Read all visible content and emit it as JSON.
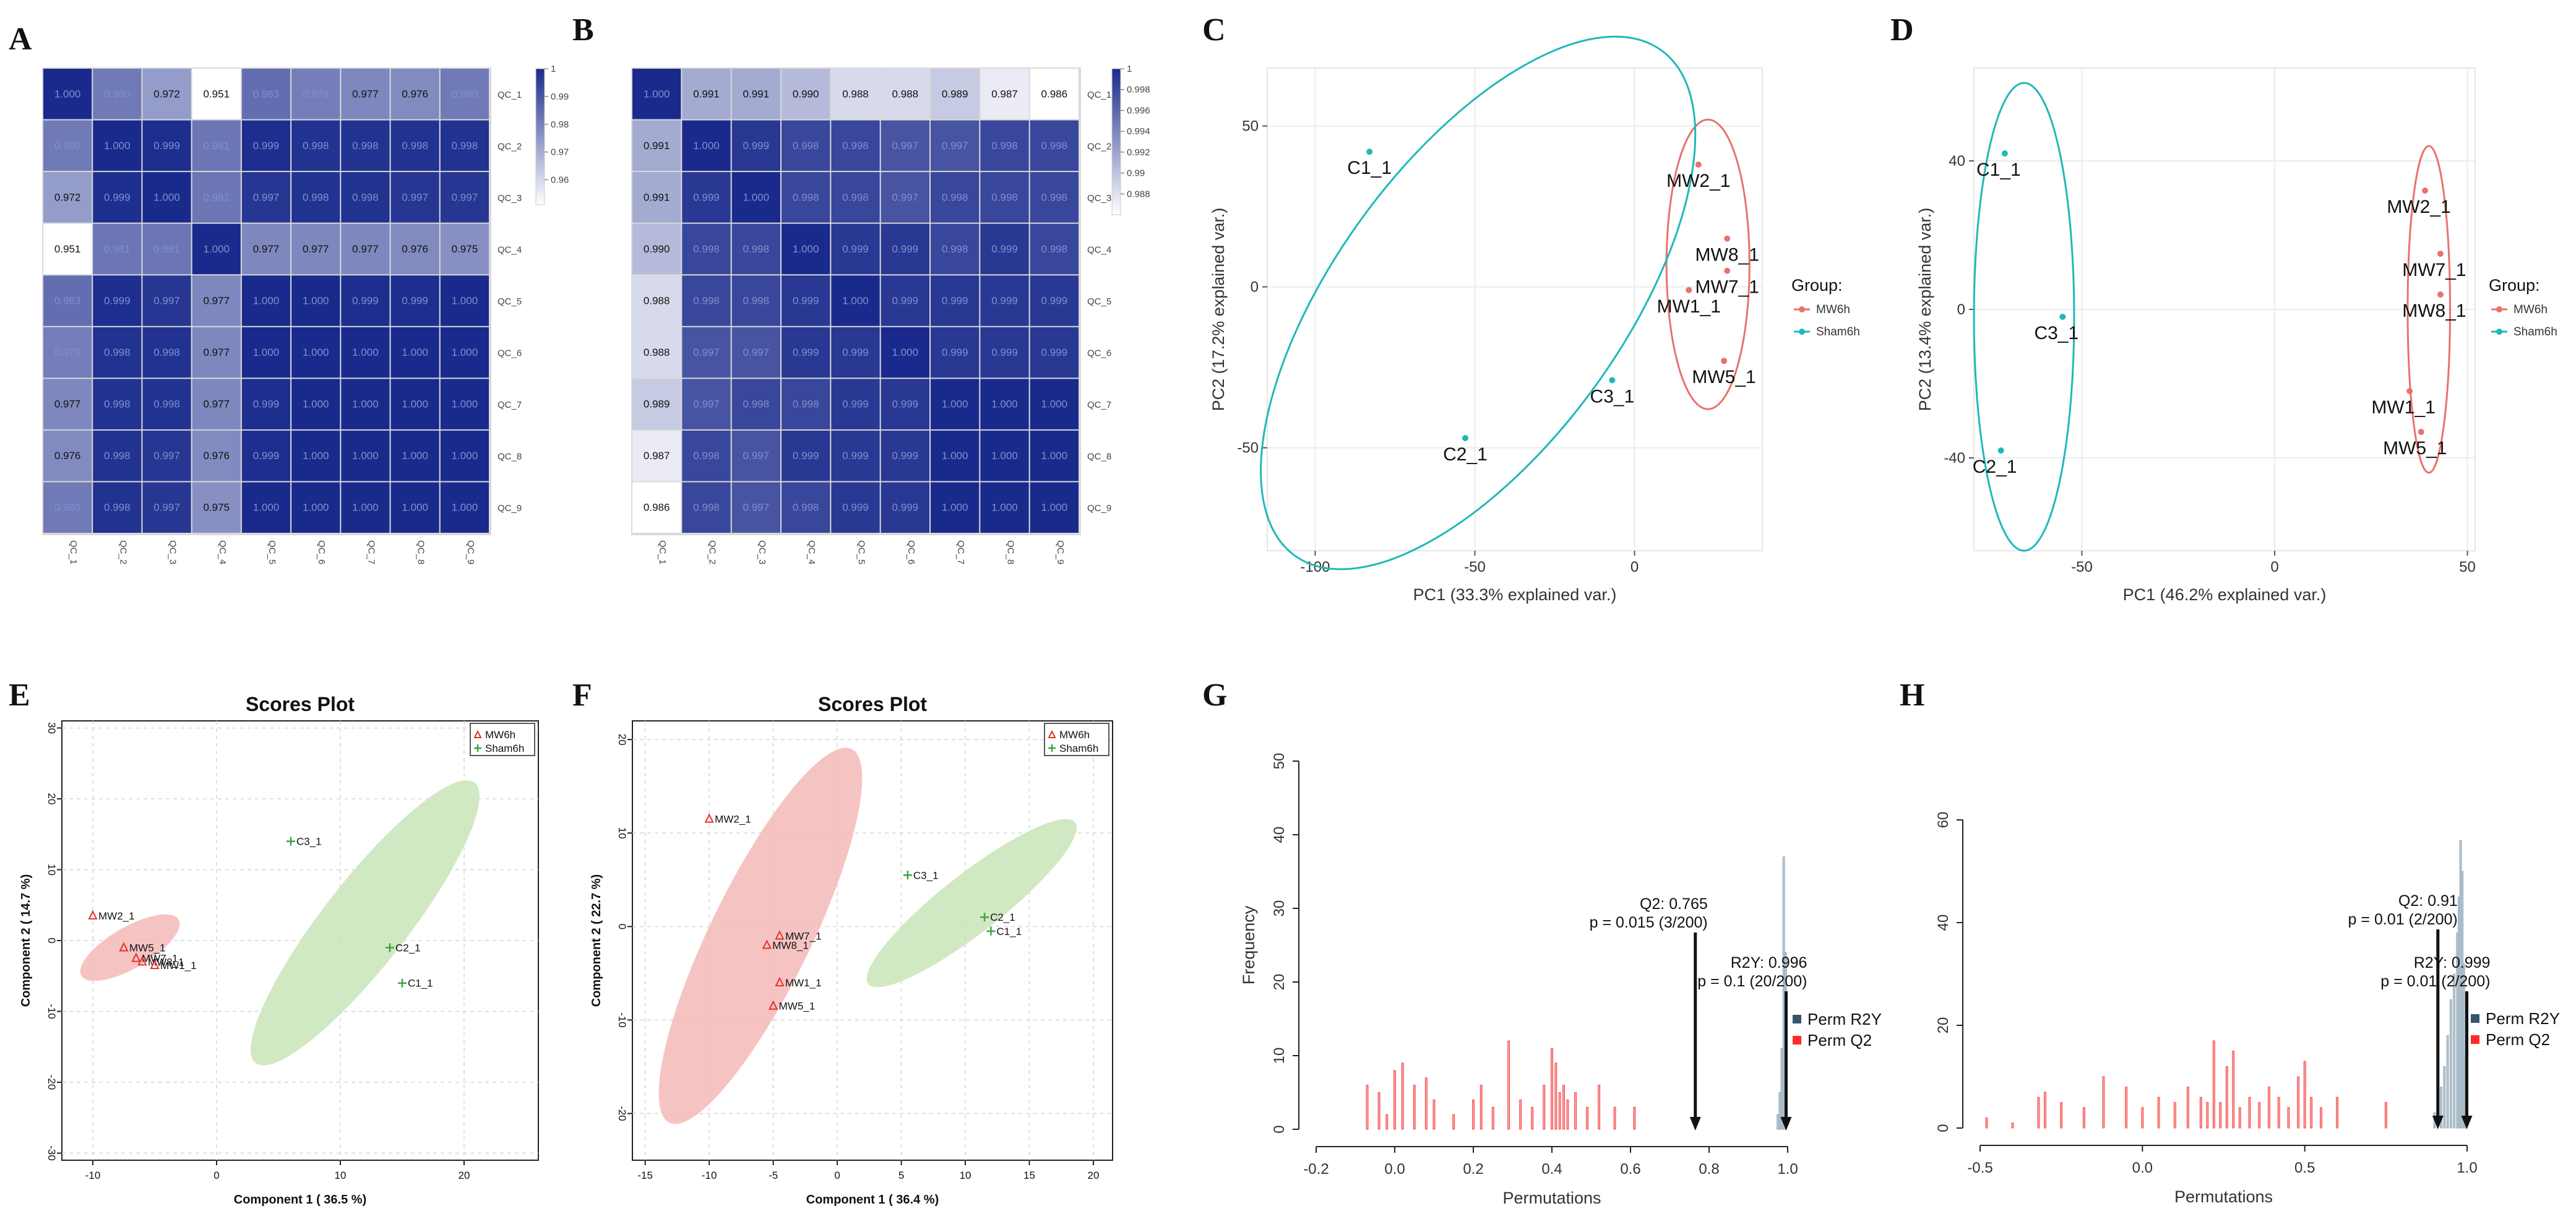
{
  "figure": {
    "panel_letters": [
      "A",
      "B",
      "C",
      "D",
      "E",
      "F",
      "G",
      "H"
    ]
  },
  "chart_data": [
    {
      "panel": "A",
      "type": "heatmap",
      "row_labels": [
        "QC_1",
        "QC_2",
        "QC_3",
        "QC_4",
        "QC_5",
        "QC_6",
        "QC_7",
        "QC_8",
        "QC_9"
      ],
      "col_labels": [
        "QC_1",
        "QC_2",
        "QC_3",
        "QC_4",
        "QC_5",
        "QC_6",
        "QC_7",
        "QC_8",
        "QC_9"
      ],
      "matrix": [
        [
          "1.000",
          "0.980",
          "0.972",
          "0.951",
          "0.983",
          "0.979",
          "0.977",
          "0.976",
          "0.980"
        ],
        [
          "0.980",
          "1.000",
          "0.999",
          "0.981",
          "0.999",
          "0.998",
          "0.998",
          "0.998",
          "0.998"
        ],
        [
          "0.972",
          "0.999",
          "1.000",
          "0.981",
          "0.997",
          "0.998",
          "0.998",
          "0.997",
          "0.997"
        ],
        [
          "0.951",
          "0.981",
          "0.981",
          "1.000",
          "0.977",
          "0.977",
          "0.977",
          "0.976",
          "0.975"
        ],
        [
          "0.983",
          "0.999",
          "0.997",
          "0.977",
          "1.000",
          "1.000",
          "0.999",
          "0.999",
          "1.000"
        ],
        [
          "0.979",
          "0.998",
          "0.998",
          "0.977",
          "1.000",
          "1.000",
          "1.000",
          "1.000",
          "1.000"
        ],
        [
          "0.977",
          "0.998",
          "0.998",
          "0.977",
          "0.999",
          "1.000",
          "1.000",
          "1.000",
          "1.000"
        ],
        [
          "0.976",
          "0.998",
          "0.997",
          "0.976",
          "0.999",
          "1.000",
          "1.000",
          "1.000",
          "1.000"
        ],
        [
          "0.980",
          "0.998",
          "0.997",
          "0.975",
          "1.000",
          "1.000",
          "1.000",
          "1.000",
          "1.000"
        ]
      ],
      "scale_min": 0.951,
      "scale_max": 1.0,
      "colorbar_ticks": [
        "1",
        "0.99",
        "0.98",
        "0.97",
        "0.96"
      ],
      "colorbar_tick_values": [
        1.0,
        0.99,
        0.98,
        0.97,
        0.96
      ],
      "colors": {
        "low": "#ffffff",
        "high": "#1a2a8c"
      }
    },
    {
      "panel": "B",
      "type": "heatmap",
      "row_labels": [
        "QC_1",
        "QC_2",
        "QC_3",
        "QC_4",
        "QC_5",
        "QC_6",
        "QC_7",
        "QC_8",
        "QC_9"
      ],
      "col_labels": [
        "QC_1",
        "QC_2",
        "QC_3",
        "QC_4",
        "QC_5",
        "QC_6",
        "QC_7",
        "QC_8",
        "QC_9"
      ],
      "matrix": [
        [
          "1.000",
          "0.991",
          "0.991",
          "0.990",
          "0.988",
          "0.988",
          "0.989",
          "0.987",
          "0.986"
        ],
        [
          "0.991",
          "1.000",
          "0.999",
          "0.998",
          "0.998",
          "0.997",
          "0.997",
          "0.998",
          "0.998"
        ],
        [
          "0.991",
          "0.999",
          "1.000",
          "0.998",
          "0.998",
          "0.997",
          "0.998",
          "0.998",
          "0.998"
        ],
        [
          "0.990",
          "0.998",
          "0.998",
          "1.000",
          "0.999",
          "0.999",
          "0.998",
          "0.999",
          "0.998"
        ],
        [
          "0.988",
          "0.998",
          "0.998",
          "0.999",
          "1.000",
          "0.999",
          "0.999",
          "0.999",
          "0.999"
        ],
        [
          "0.988",
          "0.997",
          "0.997",
          "0.999",
          "0.999",
          "1.000",
          "0.999",
          "0.999",
          "0.999"
        ],
        [
          "0.989",
          "0.997",
          "0.998",
          "0.998",
          "0.999",
          "0.999",
          "1.000",
          "1.000",
          "1.000"
        ],
        [
          "0.987",
          "0.998",
          "0.997",
          "0.999",
          "0.999",
          "0.999",
          "1.000",
          "1.000",
          "1.000"
        ],
        [
          "0.986",
          "0.998",
          "0.997",
          "0.998",
          "0.999",
          "0.999",
          "1.000",
          "1.000",
          "1.000"
        ]
      ],
      "scale_min": 0.986,
      "scale_max": 1.0,
      "colorbar_ticks": [
        "1",
        "0.998",
        "0.996",
        "0.994",
        "0.992",
        "0.99",
        "0.988"
      ],
      "colorbar_tick_values": [
        1.0,
        0.998,
        0.996,
        0.994,
        0.992,
        0.99,
        0.988
      ],
      "colors": {
        "low": "#ffffff",
        "high": "#1a2a8c"
      }
    },
    {
      "panel": "C",
      "type": "scatter",
      "xlabel": "PC1 (33.3% explained var.)",
      "ylabel": "PC2 (17.2% explained var.)",
      "xlim": [
        -115,
        40
      ],
      "ylim": [
        -82,
        68
      ],
      "xticks": [
        -100,
        -50,
        0
      ],
      "yticks": [
        -50,
        0,
        50
      ],
      "legend_title": "Group:",
      "series": [
        {
          "name": "MW6h",
          "color": "#e8726c",
          "points": [
            {
              "label": "MW2_1",
              "x": 20,
              "y": 38
            },
            {
              "label": "MW8_1",
              "x": 29,
              "y": 15
            },
            {
              "label": "MW7_1",
              "x": 29,
              "y": 5
            },
            {
              "label": "MW1_1",
              "x": 17,
              "y": -1
            },
            {
              "label": "MW5_1",
              "x": 28,
              "y": -23
            }
          ],
          "ellipse": {
            "cx": 23,
            "cy": 7,
            "rx": 13,
            "ry": 45,
            "angle": 0
          }
        },
        {
          "name": "Sham6h",
          "color": "#1fb8b8",
          "points": [
            {
              "label": "C1_1",
              "x": -83,
              "y": 42
            },
            {
              "label": "C3_1",
              "x": -7,
              "y": -29
            },
            {
              "label": "C2_1",
              "x": -53,
              "y": -47
            }
          ],
          "ellipse": {
            "cx": -49,
            "cy": -5,
            "rx": 45,
            "ry": 97,
            "angle": -36
          }
        }
      ]
    },
    {
      "panel": "D",
      "type": "scatter",
      "xlabel": "PC1 (46.2% explained var.)",
      "ylabel": "PC2 (13.4% explained var.)",
      "xlim": [
        -78,
        52
      ],
      "ylim": [
        -65,
        65
      ],
      "xticks": [
        -50,
        0,
        50
      ],
      "yticks": [
        -40,
        0,
        40
      ],
      "legend_title": "Group:",
      "series": [
        {
          "name": "MW6h",
          "color": "#e8726c",
          "points": [
            {
              "label": "MW2_1",
              "x": 39,
              "y": 32
            },
            {
              "label": "MW7_1",
              "x": 43,
              "y": 15
            },
            {
              "label": "MW8_1",
              "x": 43,
              "y": 4
            },
            {
              "label": "MW1_1",
              "x": 35,
              "y": -22
            },
            {
              "label": "MW5_1",
              "x": 38,
              "y": -33
            }
          ],
          "ellipse": {
            "cx": 40,
            "cy": 0,
            "rx": 5.5,
            "ry": 44,
            "angle": 0
          }
        },
        {
          "name": "Sham6h",
          "color": "#1fb8b8",
          "points": [
            {
              "label": "C1_1",
              "x": -70,
              "y": 42
            },
            {
              "label": "C3_1",
              "x": -55,
              "y": -2
            },
            {
              "label": "C2_1",
              "x": -71,
              "y": -38
            }
          ],
          "ellipse": {
            "cx": -65,
            "cy": -2,
            "rx": 13,
            "ry": 63,
            "angle": 0
          }
        }
      ]
    },
    {
      "panel": "E",
      "type": "scatter",
      "title": "Scores Plot",
      "xlabel": "Component 1 ( 36.5 %)",
      "ylabel": "Component 2 ( 14.7 %)",
      "xlim": [
        -12.5,
        26
      ],
      "ylim": [
        -31,
        31
      ],
      "xticks": [
        -10,
        0,
        10,
        20
      ],
      "yticks": [
        -30,
        -20,
        -10,
        0,
        10,
        20,
        30
      ],
      "series": [
        {
          "name": "MW6h",
          "color": "#e8302a",
          "marker": "triangle",
          "points": [
            {
              "label": "MW2_1",
              "x": -10,
              "y": 3.5
            },
            {
              "label": "MW5_1",
              "x": -7.5,
              "y": -1
            },
            {
              "label": "MW7_1",
              "x": -6.5,
              "y": -2.5
            },
            {
              "label": "MW8_1",
              "x": -6,
              "y": -3
            },
            {
              "label": "MW1_1",
              "x": -5,
              "y": -3.5
            }
          ],
          "ellipse": {
            "cx": -7,
            "cy": -1,
            "rx": 6,
            "ry": 2.2,
            "angle": -30,
            "fill": "#f5b9b9"
          }
        },
        {
          "name": "Sham6h",
          "color": "#3aa63a",
          "marker": "plus",
          "points": [
            {
              "label": "C3_1",
              "x": 6,
              "y": 14
            },
            {
              "label": "C2_1",
              "x": 14,
              "y": -1
            },
            {
              "label": "C1_1",
              "x": 15,
              "y": -6
            }
          ],
          "ellipse": {
            "cx": 12,
            "cy": 2.5,
            "rx": 19,
            "ry": 4.5,
            "angle": -52,
            "fill": "#c9e5b9"
          }
        }
      ]
    },
    {
      "panel": "F",
      "type": "scatter",
      "title": "Scores Plot",
      "xlabel": "Component 1 ( 36.4 %)",
      "ylabel": "Component 2 ( 22.7 %)",
      "xlim": [
        -16,
        21.5
      ],
      "ylim": [
        -25,
        22
      ],
      "xticks": [
        -15,
        -10,
        -5,
        0,
        5,
        10,
        15,
        20
      ],
      "yticks": [
        -20,
        -10,
        0,
        10,
        20
      ],
      "series": [
        {
          "name": "MW6h",
          "color": "#e8302a",
          "marker": "triangle",
          "points": [
            {
              "label": "MW2_1",
              "x": -10,
              "y": 11.5
            },
            {
              "label": "MW7_1",
              "x": -4.5,
              "y": -1
            },
            {
              "label": "MW8_1",
              "x": -5.5,
              "y": -2
            },
            {
              "label": "MW1_1",
              "x": -4.5,
              "y": -6
            },
            {
              "label": "MW5_1",
              "x": -5,
              "y": -8.5
            }
          ],
          "ellipse": {
            "cx": -6,
            "cy": -1,
            "rx": 19,
            "ry": 4.6,
            "angle": -64,
            "fill": "#f5b9b9"
          }
        },
        {
          "name": "Sham6h",
          "color": "#3aa63a",
          "marker": "plus",
          "points": [
            {
              "label": "C3_1",
              "x": 5.5,
              "y": 5.5
            },
            {
              "label": "C2_1",
              "x": 11.5,
              "y": 1
            },
            {
              "label": "C1_1",
              "x": 12,
              "y": -0.5
            }
          ],
          "ellipse": {
            "cx": 10.5,
            "cy": 2.5,
            "rx": 12,
            "ry": 2.7,
            "angle": -38,
            "fill": "#c9e5b9"
          }
        }
      ]
    },
    {
      "panel": "G",
      "type": "bar",
      "xlabel": "Permutations",
      "ylabel": "Frequency",
      "xlim": [
        -0.2,
        1.0
      ],
      "ylim": [
        0,
        50
      ],
      "xticks": [
        "-0.2",
        "0.0",
        "0.2",
        "0.4",
        "0.6",
        "0.8",
        "1.0"
      ],
      "yticks": [
        "0",
        "10",
        "20",
        "30",
        "40",
        "50"
      ],
      "series": [
        {
          "name": "Perm R2Y",
          "color": "#34556b",
          "x": [
            0.975,
            0.98,
            0.985,
            0.99,
            0.995
          ],
          "values": [
            2,
            5,
            11,
            37,
            24
          ]
        },
        {
          "name": "Perm Q2",
          "color": "#ff2a2a",
          "x": [
            -0.07,
            -0.04,
            -0.02,
            0.0,
            0.02,
            0.05,
            0.08,
            0.1,
            0.15,
            0.2,
            0.22,
            0.25,
            0.29,
            0.32,
            0.35,
            0.38,
            0.4,
            0.41,
            0.42,
            0.43,
            0.44,
            0.46,
            0.49,
            0.52,
            0.56,
            0.61
          ],
          "values": [
            6,
            5,
            2,
            8,
            9,
            6,
            7,
            4,
            2,
            4,
            6,
            3,
            12,
            4,
            3,
            6,
            11,
            9,
            5,
            6,
            4,
            5,
            3,
            6,
            3,
            3
          ]
        }
      ],
      "annotations": [
        {
          "text_line1": "Q2: 0.765",
          "text_line2": "p = 0.015 (3/200)",
          "x": 0.765
        },
        {
          "text_line1": "R2Y: 0.996",
          "text_line2": "p = 0.1 (20/200)",
          "x": 0.996
        }
      ]
    },
    {
      "panel": "H",
      "type": "bar",
      "xlabel": "Permutations",
      "ylabel": "",
      "xlim": [
        -0.5,
        1.0
      ],
      "ylim": [
        0,
        60
      ],
      "xticks": [
        "-0.5",
        "0.0",
        "0.5",
        "1.0"
      ],
      "yticks": [
        "0",
        "20",
        "40",
        "60"
      ],
      "series": [
        {
          "name": "Perm R2Y",
          "color": "#34556b",
          "x": [
            0.9,
            0.92,
            0.93,
            0.94,
            0.95,
            0.96,
            0.97,
            0.975,
            0.98,
            0.985,
            0.99,
            0.995
          ],
          "values": [
            3,
            8,
            12,
            18,
            25,
            30,
            38,
            45,
            56,
            50,
            32,
            14
          ]
        },
        {
          "name": "Perm Q2",
          "color": "#ff2a2a",
          "x": [
            -0.48,
            -0.4,
            -0.32,
            -0.3,
            -0.25,
            -0.18,
            -0.12,
            -0.05,
            0.0,
            0.05,
            0.1,
            0.14,
            0.18,
            0.2,
            0.22,
            0.24,
            0.26,
            0.28,
            0.3,
            0.33,
            0.36,
            0.39,
            0.42,
            0.45,
            0.48,
            0.5,
            0.52,
            0.55,
            0.6,
            0.75
          ],
          "values": [
            2,
            1,
            6,
            7,
            5,
            4,
            10,
            8,
            4,
            6,
            5,
            8,
            6,
            5,
            17,
            5,
            12,
            15,
            4,
            6,
            5,
            8,
            6,
            4,
            10,
            13,
            6,
            4,
            6,
            5
          ]
        }
      ],
      "annotations": [
        {
          "text_line1": "Q2: 0.91",
          "text_line2": "p = 0.01 (2/200)",
          "x": 0.91
        },
        {
          "text_line1": "R2Y: 0.999",
          "text_line2": "p = 0.01 (2/200)",
          "x": 0.999
        }
      ]
    }
  ]
}
